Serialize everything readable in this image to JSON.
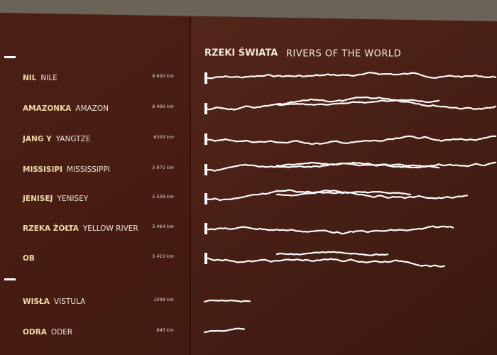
{
  "title": {
    "pl": "RZEKI ŚWIATA",
    "en": "RIVERS OF THE WORLD"
  },
  "rivers": [
    {
      "pl": "NIL",
      "en": "NILE",
      "length": "6 650 km"
    },
    {
      "pl": "AMAZONKA",
      "en": "AMAZON",
      "length": "6 400 km"
    },
    {
      "pl": "JANG Y",
      "en": "YANGTZE",
      "length": "6303 km"
    },
    {
      "pl": "MISSISIPI",
      "en": "MISSISSIPPI",
      "length": "5 971 km"
    },
    {
      "pl": "JENISEJ",
      "en": "YENISEY",
      "length": "5 539 km"
    },
    {
      "pl": "RZEKA ŻÓŁTA",
      "en": "YELLOW RIVER",
      "length": "5 464 km"
    },
    {
      "pl": "OB",
      "length": "5 410 km"
    },
    {
      "pl": "WISŁA",
      "en": "VISTULA",
      "length": "1048 km"
    },
    {
      "pl": "ODRA",
      "en": "ODER",
      "length": "845 km"
    }
  ]
}
